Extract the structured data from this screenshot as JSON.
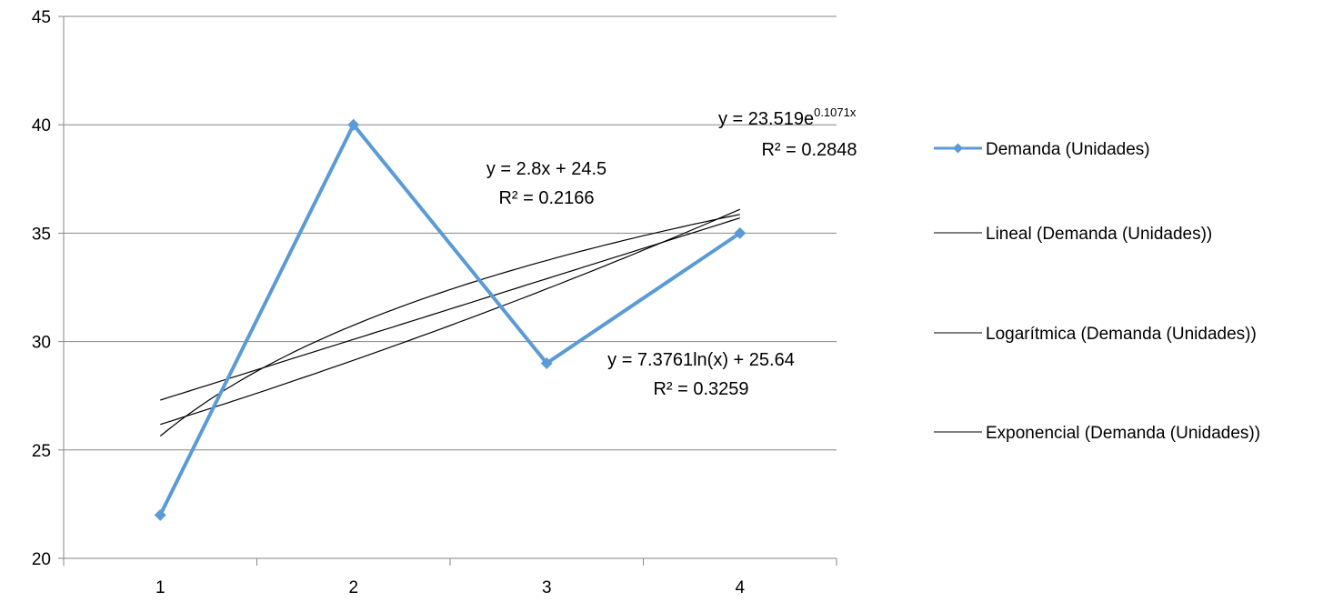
{
  "chart_data": {
    "type": "line",
    "categories": [
      "1",
      "2",
      "3",
      "4"
    ],
    "x": [
      1,
      2,
      3,
      4
    ],
    "ylim": [
      20,
      45
    ],
    "y_ticks": [
      "20",
      "25",
      "30",
      "35",
      "40",
      "45"
    ],
    "grid": true,
    "legend_position": "right",
    "series": [
      {
        "name": "Demanda (Unidades)",
        "values": [
          22,
          40,
          29,
          35
        ],
        "color": "#5b9bd5",
        "marker": "diamond"
      }
    ],
    "trendlines": [
      {
        "name": "Lineal (Demanda (Unidades))",
        "kind": "linear",
        "slope": 2.8,
        "intercept": 24.5,
        "equation": "y = 2.8x + 24.5",
        "r2": "R² = 0.2166",
        "color": "#000000"
      },
      {
        "name": "Logarítmica (Demanda (Unidades))",
        "kind": "log",
        "coef": 7.3761,
        "intercept": 25.64,
        "equation": "y = 7.3761ln(x) + 25.64",
        "r2": "R² = 0.3259",
        "color": "#000000"
      },
      {
        "name": "Exponencial (Demanda (Unidades))",
        "kind": "exp",
        "a": 23.519,
        "b": 0.1071,
        "equation_base": "y = 23.519e",
        "equation_exp": "0.1071x",
        "r2": "R² = 0.2848",
        "color": "#000000"
      }
    ]
  }
}
